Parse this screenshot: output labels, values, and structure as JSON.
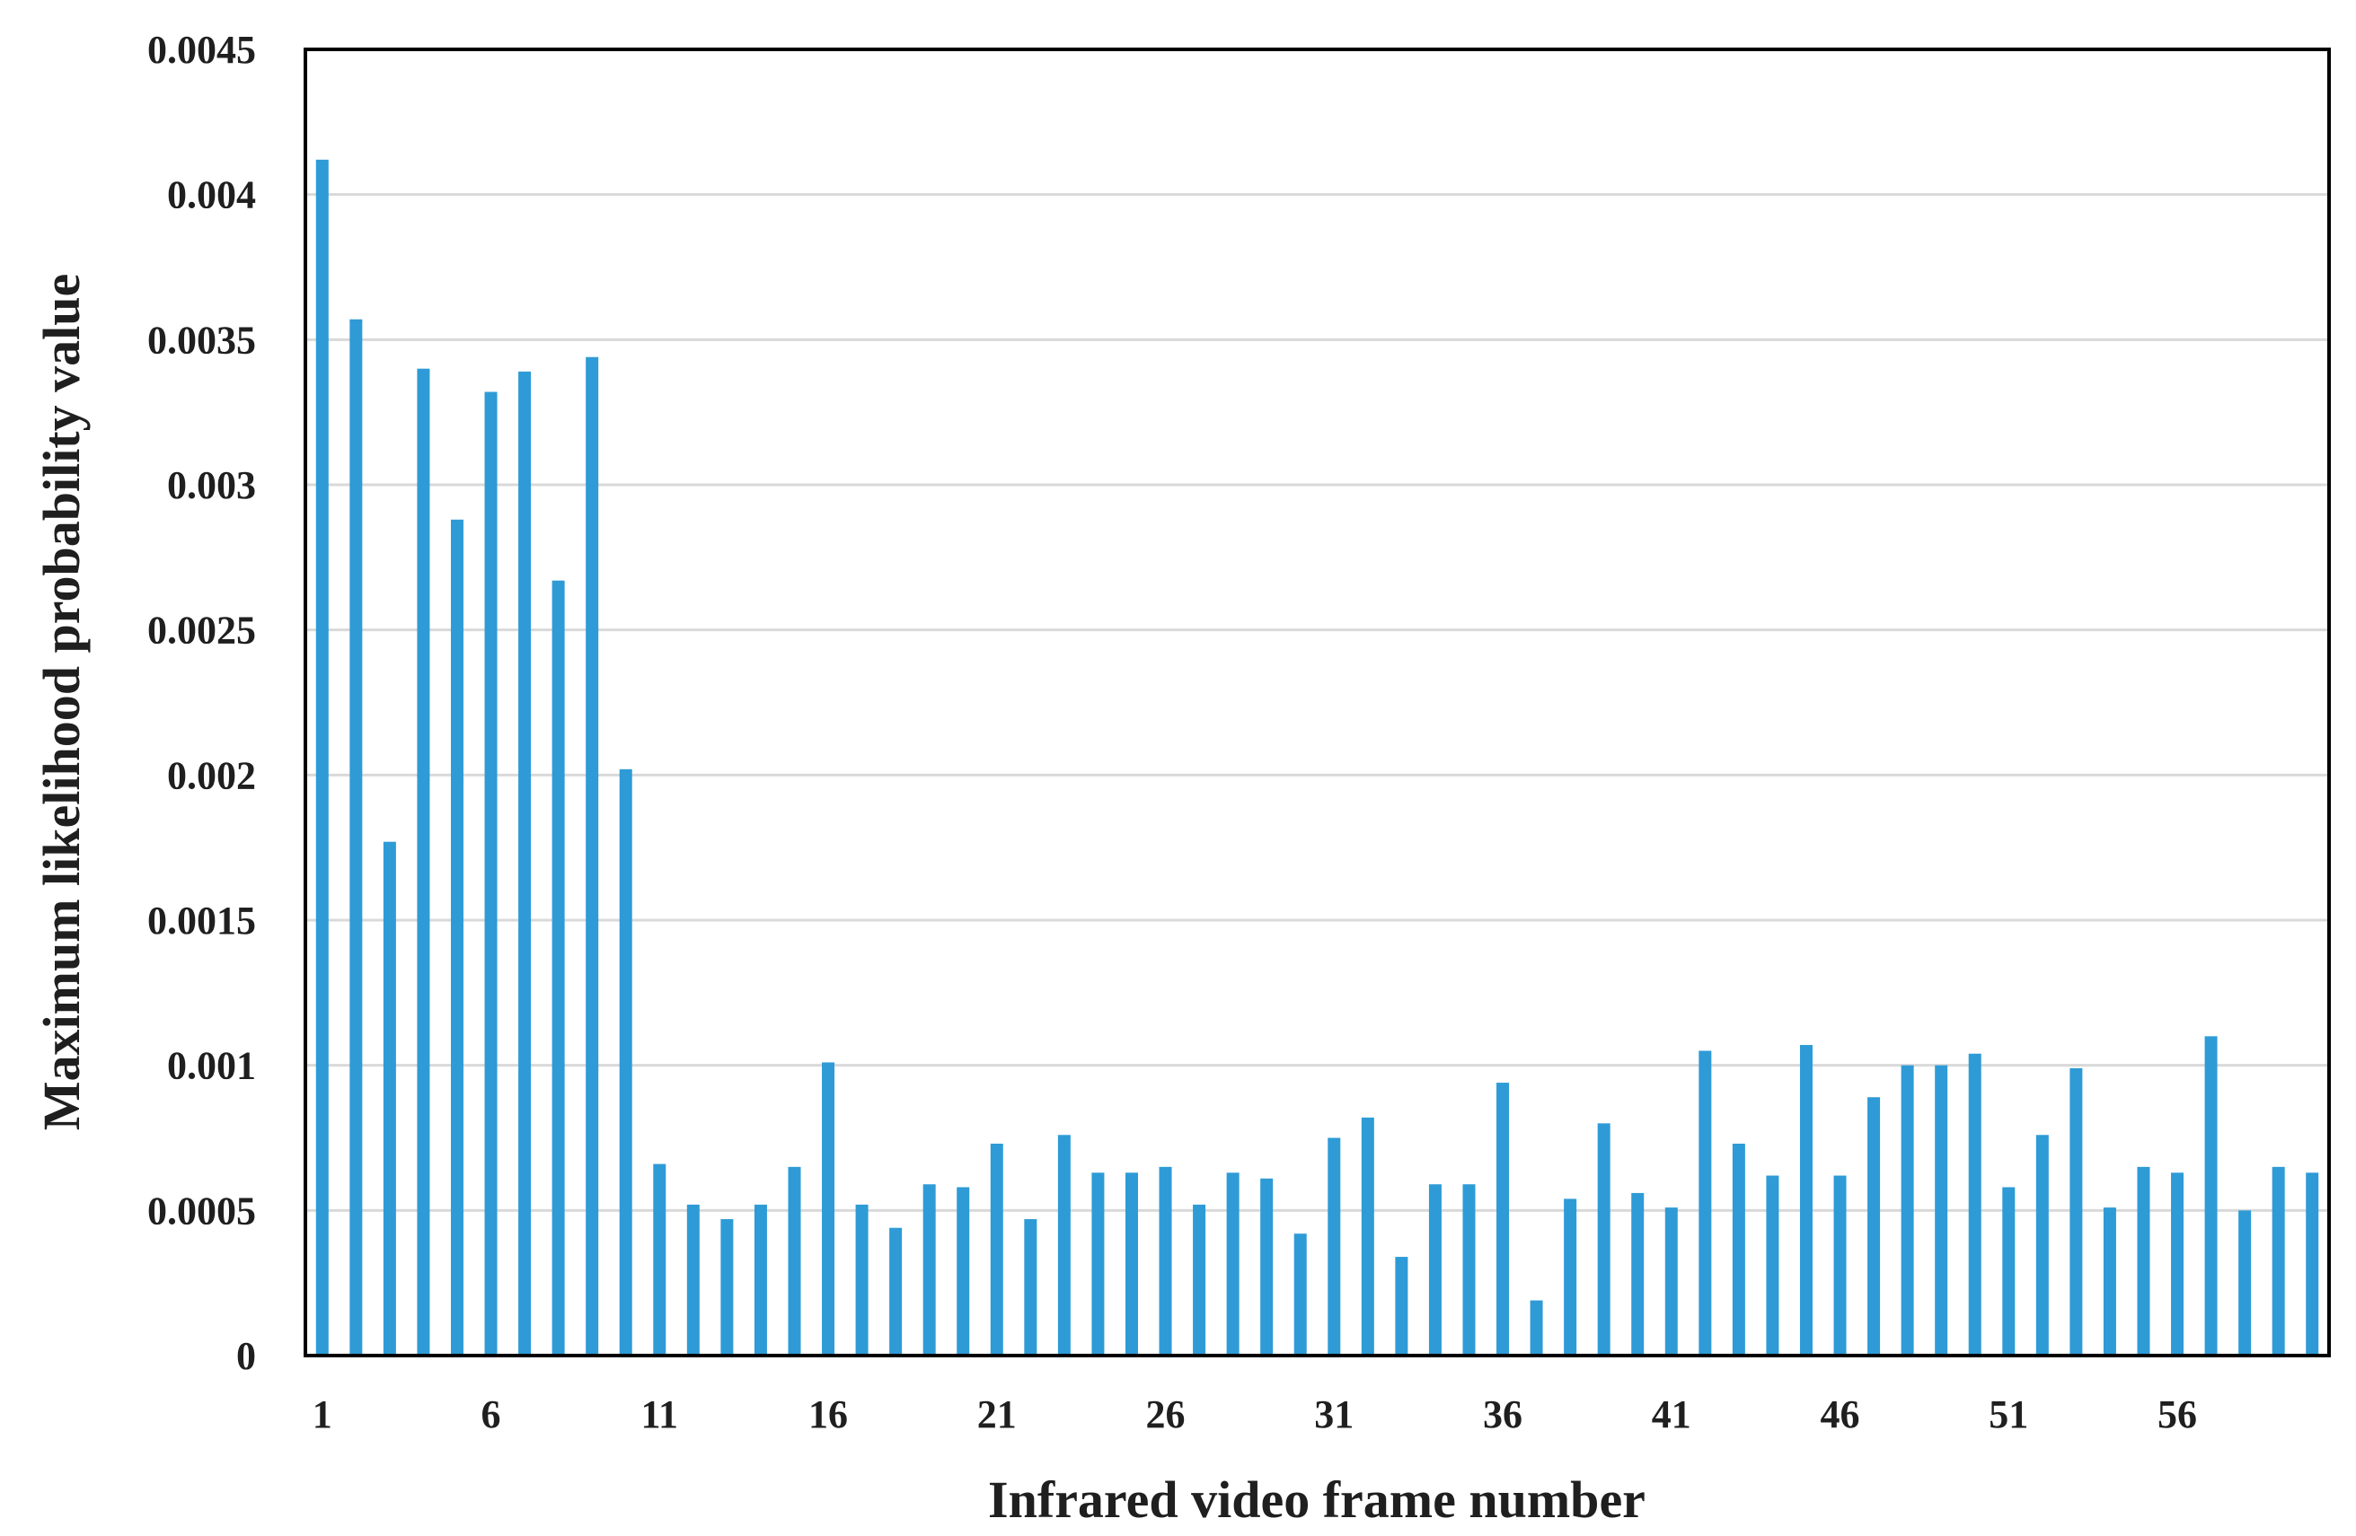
{
  "chart_data": {
    "type": "bar",
    "xlabel": "Infrared video frame number",
    "ylabel": "Maximum likelihood probability value",
    "ylim": [
      0,
      0.0045
    ],
    "yticks": [
      "0",
      "0.0005",
      "0.001",
      "0.0015",
      "0.002",
      "0.0025",
      "0.003",
      "0.0035",
      "0.004",
      "0.0045"
    ],
    "xticks": [
      "1",
      "6",
      "11",
      "16",
      "21",
      "26",
      "31",
      "36",
      "41",
      "46",
      "51",
      "56"
    ],
    "grid": "horizontal",
    "bar_color": "#2e9bd6",
    "x": [
      1,
      2,
      3,
      4,
      5,
      6,
      7,
      8,
      9,
      10,
      11,
      12,
      13,
      14,
      15,
      16,
      17,
      18,
      19,
      20,
      21,
      22,
      23,
      24,
      25,
      26,
      27,
      28,
      29,
      30,
      31,
      32,
      33,
      34,
      35,
      36,
      37,
      38,
      39,
      40,
      41,
      42,
      43,
      44,
      45,
      46,
      47,
      48,
      49,
      50,
      51,
      52,
      53,
      54,
      55,
      56,
      57,
      58,
      59,
      60
    ],
    "values": [
      0.00412,
      0.00357,
      0.00177,
      0.0034,
      0.00288,
      0.00332,
      0.00339,
      0.00267,
      0.00344,
      0.00202,
      0.00066,
      0.00052,
      0.00047,
      0.00052,
      0.00065,
      0.00101,
      0.00052,
      0.00044,
      0.00059,
      0.00058,
      0.00073,
      0.00047,
      0.00076,
      0.00063,
      0.00063,
      0.00065,
      0.00052,
      0.00063,
      0.00061,
      0.00042,
      0.00075,
      0.00082,
      0.00034,
      0.00059,
      0.00059,
      0.00094,
      0.00019,
      0.00054,
      0.0008,
      0.00056,
      0.00051,
      0.00105,
      0.00073,
      0.00062,
      0.00107,
      0.00062,
      0.00089,
      0.001,
      0.001,
      0.00104,
      0.00058,
      0.00076,
      0.00099,
      0.00051,
      0.00065,
      0.00063,
      0.0011,
      0.0005,
      0.00065,
      0.00063
    ]
  }
}
